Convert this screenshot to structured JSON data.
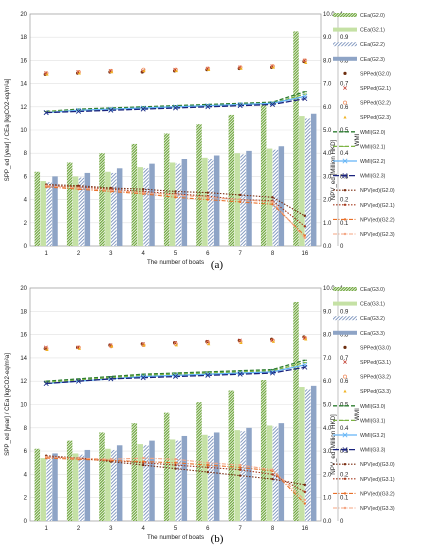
{
  "chart_data": [
    {
      "type": "bar",
      "panel_label": "(a)",
      "xlabel": "The number of boats",
      "ylabel_left": "SPP_ed [year] / CEa [kgCO2-eq/m²a]",
      "ylabel_right1": "NPV_ed [Million HKD]",
      "ylabel_right2": "WMI",
      "categories": [
        "1",
        "2",
        "3",
        "4",
        "5",
        "6",
        "7",
        "8",
        "16"
      ],
      "ylim_left": [
        0,
        20
      ],
      "ylim_right1": [
        0,
        10
      ],
      "ylim_right2": [
        0,
        1
      ],
      "yticks_left": [
        0,
        2,
        4,
        6,
        8,
        10,
        12,
        14,
        16,
        18,
        20
      ],
      "yticks_right1": [
        "0.0",
        "1.0",
        "2.0",
        "3.0",
        "4.0",
        "5.0",
        "6.0",
        "7.0",
        "8.0",
        "9.0",
        "10.0"
      ],
      "yticks_right2": [
        "0",
        "0.1",
        "0.2",
        "0.3",
        "0.4",
        "0.5",
        "0.6",
        "0.7",
        "0.8",
        "0.9",
        "1"
      ],
      "bars": [
        {
          "name": "CEa(G2.0)",
          "color": "#7cb342",
          "pattern": "dense",
          "values": [
            6.4,
            7.2,
            8.0,
            8.8,
            9.7,
            10.5,
            11.3,
            12.2,
            18.5
          ]
        },
        {
          "name": "CEa(G2.1)",
          "color": "#c5e1a5",
          "pattern": "solid",
          "values": [
            5.6,
            6.0,
            6.4,
            6.8,
            7.2,
            7.6,
            8.0,
            8.4,
            11.2
          ]
        },
        {
          "name": "CEa(G2.2)",
          "color": "#90a4c8",
          "pattern": "hatch",
          "values": [
            5.5,
            5.9,
            6.3,
            6.7,
            7.1,
            7.5,
            7.9,
            8.3,
            11.0
          ]
        },
        {
          "name": "CEa(G2.3)",
          "color": "#8ea4c6",
          "pattern": "solid",
          "values": [
            6.0,
            6.3,
            6.7,
            7.1,
            7.5,
            7.8,
            8.2,
            8.6,
            11.4
          ]
        }
      ],
      "spp": [
        {
          "name": "SPPed(G2.0)",
          "color": "#6d2e0f",
          "marker": "dot",
          "values": [
            7.4,
            7.45,
            7.5,
            7.5,
            7.55,
            7.6,
            7.65,
            7.7,
            7.95
          ]
        },
        {
          "name": "SPPed(G2.1)",
          "color": "#c0392b",
          "marker": "x",
          "values": [
            7.45,
            7.5,
            7.55,
            7.55,
            7.6,
            7.65,
            7.7,
            7.75,
            8.0
          ]
        },
        {
          "name": "SPPed(G2.2)",
          "color": "#ef8a5a",
          "marker": "ring",
          "values": [
            7.45,
            7.5,
            7.55,
            7.6,
            7.6,
            7.65,
            7.7,
            7.75,
            8.0
          ]
        },
        {
          "name": "SPPed(G2.3)",
          "color": "#f0b323",
          "marker": "triangle",
          "values": [
            7.4,
            7.45,
            7.5,
            7.55,
            7.55,
            7.6,
            7.65,
            7.7,
            7.9
          ]
        }
      ],
      "wmi": [
        {
          "name": "WMI(G2.0)",
          "color": "#2e7d32",
          "dash": "4,2",
          "values": [
            0.58,
            0.59,
            0.595,
            0.6,
            0.605,
            0.61,
            0.615,
            0.62,
            0.665
          ]
        },
        {
          "name": "WMI(G2.1)",
          "color": "#7cb342",
          "dash": "4,2",
          "values": [
            0.58,
            0.585,
            0.59,
            0.595,
            0.6,
            0.605,
            0.61,
            0.615,
            0.655
          ]
        },
        {
          "name": "WMI(G2.2)",
          "color": "#64b5f6",
          "dash": "",
          "values": [
            0.575,
            0.585,
            0.59,
            0.595,
            0.6,
            0.605,
            0.61,
            0.615,
            0.645
          ]
        },
        {
          "name": "WMI(G2.3)",
          "color": "#1a237e",
          "dash": "6,2",
          "values": [
            0.575,
            0.58,
            0.585,
            0.59,
            0.595,
            0.6,
            0.605,
            0.61,
            0.635
          ]
        }
      ],
      "npv": [
        {
          "name": "NPV(ed)(G2.0)",
          "color": "#7b2e12",
          "dash": "1.5,1.5",
          "values": [
            2.65,
            2.6,
            2.5,
            2.45,
            2.35,
            2.3,
            2.2,
            2.1,
            1.3
          ]
        },
        {
          "name": "NPV(ed)(G2.1)",
          "color": "#a63a1e",
          "dash": "1.5,1.5",
          "values": [
            2.6,
            2.55,
            2.45,
            2.35,
            2.25,
            2.15,
            2.0,
            1.95,
            0.85
          ]
        },
        {
          "name": "NPV(ed)(G2.2)",
          "color": "#e8702a",
          "dash": "4,1.5,1,1.5",
          "values": [
            2.55,
            2.45,
            2.35,
            2.25,
            2.1,
            2.0,
            1.9,
            1.8,
            0.45
          ]
        },
        {
          "name": "NPV(ed)(G2.3)",
          "color": "#f4a582",
          "dash": "4,1.5,1,1.5",
          "values": [
            2.6,
            2.5,
            2.4,
            2.3,
            2.2,
            2.1,
            2.0,
            1.9,
            0.35
          ]
        }
      ]
    },
    {
      "type": "bar",
      "panel_label": "(b)",
      "xlabel": "The number of boats",
      "ylabel_left": "SPP_ed [year] / CEa [kgCO2-eq/m²a]",
      "ylabel_right1": "NPV_ed [Million HKD]",
      "ylabel_right2": "WMI",
      "categories": [
        "1",
        "2",
        "3",
        "4",
        "5",
        "6",
        "7",
        "8",
        "16"
      ],
      "ylim_left": [
        0,
        20
      ],
      "ylim_right1": [
        0,
        10
      ],
      "ylim_right2": [
        0,
        1
      ],
      "yticks_left": [
        0,
        2,
        4,
        6,
        8,
        10,
        12,
        14,
        16,
        18,
        20
      ],
      "yticks_right1": [
        "0.0",
        "1.0",
        "2.0",
        "3.0",
        "4.0",
        "5.0",
        "6.0",
        "7.0",
        "8.0",
        "9.0",
        "10.0"
      ],
      "yticks_right2": [
        "0",
        "0.1",
        "0.2",
        "0.3",
        "0.4",
        "0.5",
        "0.6",
        "0.7",
        "0.8",
        "0.9",
        "1"
      ],
      "bars": [
        {
          "name": "CEa(G3.0)",
          "color": "#7cb342",
          "pattern": "dense",
          "values": [
            6.2,
            6.9,
            7.6,
            8.4,
            9.3,
            10.2,
            11.2,
            12.1,
            18.8
          ]
        },
        {
          "name": "CEa(G3.1)",
          "color": "#c5e1a5",
          "pattern": "solid",
          "values": [
            5.4,
            5.8,
            6.2,
            6.6,
            7.0,
            7.4,
            7.8,
            8.2,
            11.5
          ]
        },
        {
          "name": "CEa(G3.2)",
          "color": "#90a4c8",
          "pattern": "hatch",
          "values": [
            5.3,
            5.7,
            6.1,
            6.5,
            6.9,
            7.3,
            7.7,
            8.1,
            11.3
          ]
        },
        {
          "name": "CEa(G3.3)",
          "color": "#8ea4c6",
          "pattern": "solid",
          "values": [
            5.8,
            6.1,
            6.5,
            6.9,
            7.3,
            7.6,
            8.0,
            8.4,
            11.6
          ]
        }
      ],
      "spp": [
        {
          "name": "SPPed(G3.0)",
          "color": "#6d2e0f",
          "marker": "dot",
          "values": [
            7.4,
            7.45,
            7.55,
            7.6,
            7.65,
            7.7,
            7.75,
            7.8,
            7.9
          ]
        },
        {
          "name": "SPPed(G3.1)",
          "color": "#c0392b",
          "marker": "x",
          "values": [
            7.45,
            7.45,
            7.55,
            7.6,
            7.65,
            7.7,
            7.75,
            7.75,
            7.85
          ]
        },
        {
          "name": "SPPed(G3.2)",
          "color": "#ef8a5a",
          "marker": "ring",
          "values": [
            7.4,
            7.45,
            7.5,
            7.55,
            7.6,
            7.65,
            7.7,
            7.75,
            7.85
          ]
        },
        {
          "name": "SPPed(G3.3)",
          "color": "#f0b323",
          "marker": "triangle",
          "values": [
            7.35,
            7.4,
            7.5,
            7.55,
            7.55,
            7.6,
            7.65,
            7.7,
            7.8
          ]
        }
      ],
      "wmi": [
        {
          "name": "WMI(G3.0)",
          "color": "#2e7d32",
          "dash": "4,2",
          "values": [
            0.6,
            0.61,
            0.62,
            0.63,
            0.635,
            0.64,
            0.645,
            0.65,
            0.69
          ]
        },
        {
          "name": "WMI(G3.1)",
          "color": "#7cb342",
          "dash": "4,2",
          "values": [
            0.595,
            0.605,
            0.615,
            0.625,
            0.63,
            0.635,
            0.64,
            0.645,
            0.68
          ]
        },
        {
          "name": "WMI(G3.2)",
          "color": "#64b5f6",
          "dash": "",
          "values": [
            0.59,
            0.6,
            0.61,
            0.62,
            0.625,
            0.63,
            0.635,
            0.64,
            0.67
          ]
        },
        {
          "name": "WMI(G3.3)",
          "color": "#1a237e",
          "dash": "6,2",
          "values": [
            0.59,
            0.6,
            0.61,
            0.615,
            0.62,
            0.625,
            0.63,
            0.635,
            0.66
          ]
        }
      ],
      "npv": [
        {
          "name": "NPV(ed)(G3.0)",
          "color": "#7b2e12",
          "dash": "1.5,1.5",
          "values": [
            2.8,
            2.7,
            2.55,
            2.4,
            2.25,
            2.1,
            1.95,
            1.8,
            1.55
          ]
        },
        {
          "name": "NPV(ed)(G3.1)",
          "color": "#a63a1e",
          "dash": "1.5,1.5",
          "values": [
            2.75,
            2.7,
            2.6,
            2.5,
            2.4,
            2.3,
            2.2,
            2.0,
            1.25
          ]
        },
        {
          "name": "NPV(ed)(G3.2)",
          "color": "#e8702a",
          "dash": "4,1.5,1,1.5",
          "values": [
            2.7,
            2.65,
            2.6,
            2.55,
            2.5,
            2.4,
            2.3,
            2.15,
            0.75
          ]
        },
        {
          "name": "NPV(ed)(G3.3)",
          "color": "#f4a582",
          "dash": "4,1.5,1,1.5",
          "values": [
            2.75,
            2.7,
            2.65,
            2.7,
            2.65,
            2.5,
            2.4,
            2.2,
            0.9
          ]
        }
      ]
    }
  ]
}
